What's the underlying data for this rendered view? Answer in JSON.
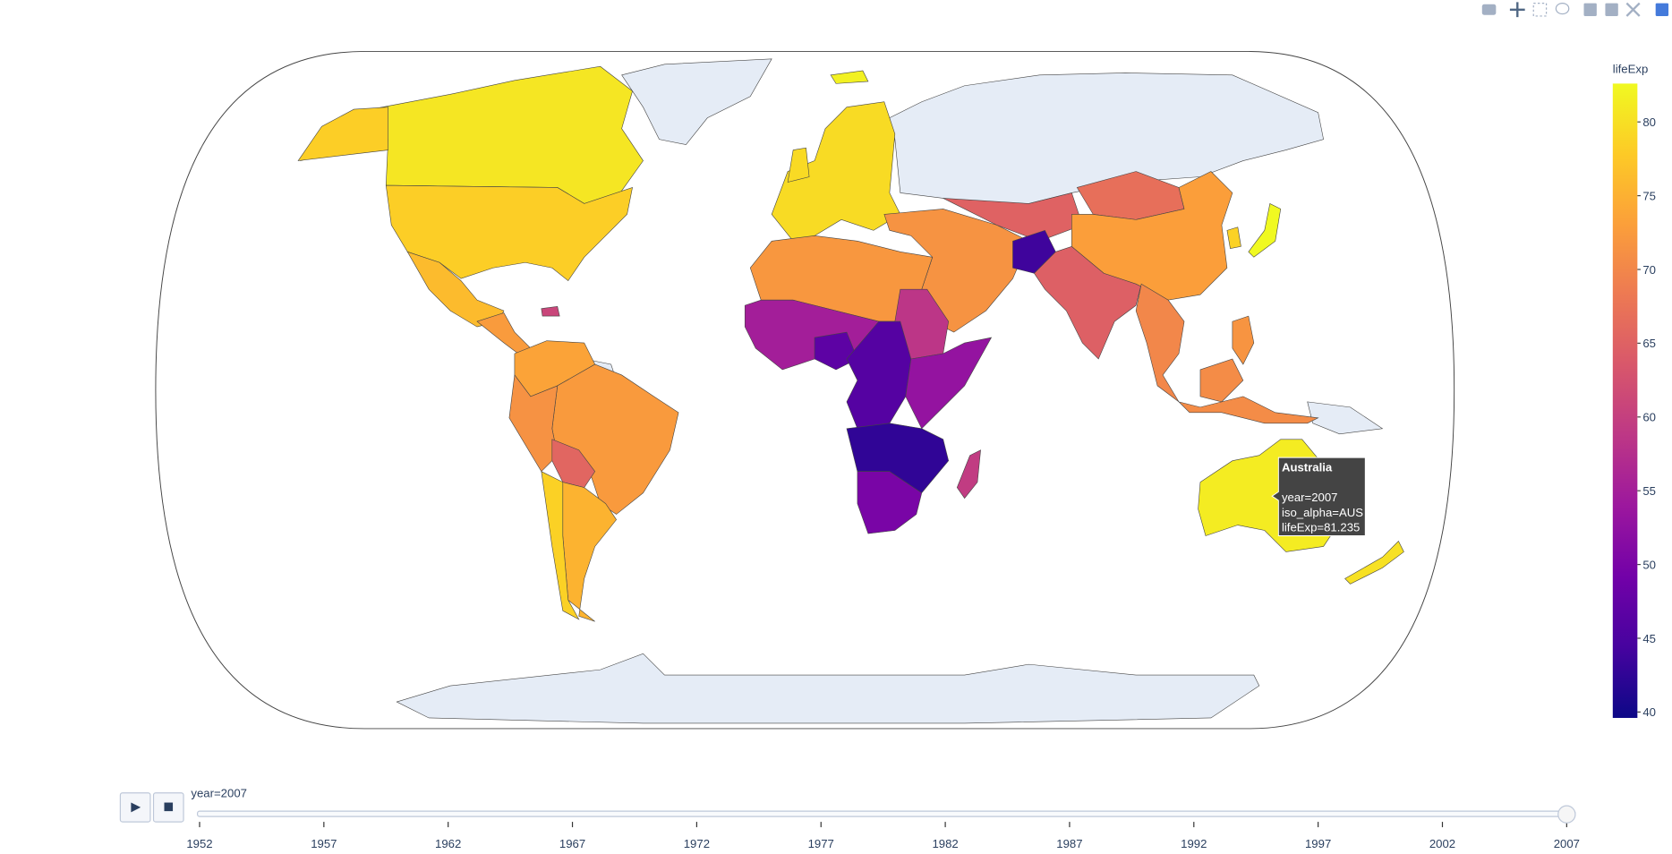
{
  "chart_data": {
    "type": "choropleth",
    "colorbar_title": "lifeExp",
    "zlim": [
      39.6,
      82.6
    ],
    "zticks": [
      40,
      45,
      50,
      55,
      60,
      65,
      70,
      75,
      80
    ],
    "colorscale": [
      "#0d0887",
      "#46039f",
      "#7201a8",
      "#9c179e",
      "#bd3786",
      "#d8576b",
      "#ed7953",
      "#fb9f3a",
      "#fdca26",
      "#f0f921"
    ],
    "no_data_color": "#e5ecf6",
    "values": [
      80.653,
      78.242,
      76.195,
      72.5,
      60.916,
      73.5,
      72.39,
      71.4,
      65.554,
      75.32,
      78.553,
      79.5,
      81.757,
      79.425,
      71.5,
      65.0,
      43.828,
      64.698,
      66.803,
      72.961,
      70.0,
      70.65,
      71.688,
      82.603,
      78.623,
      81.235,
      80.204,
      72.0,
      58.556,
      55.0,
      46.859,
      46.0,
      53.0,
      42.5,
      50.0,
      59.443
    ]
  },
  "slider": {
    "current_label": "year=2007",
    "steps": [
      1952,
      1957,
      1962,
      1967,
      1972,
      1977,
      1982,
      1987,
      1992,
      1997,
      2002,
      2007
    ]
  },
  "hover": {
    "title": "Australia",
    "lines": [
      "year=2007",
      "iso_alpha=AUS",
      "lifeExp=81.235"
    ]
  }
}
